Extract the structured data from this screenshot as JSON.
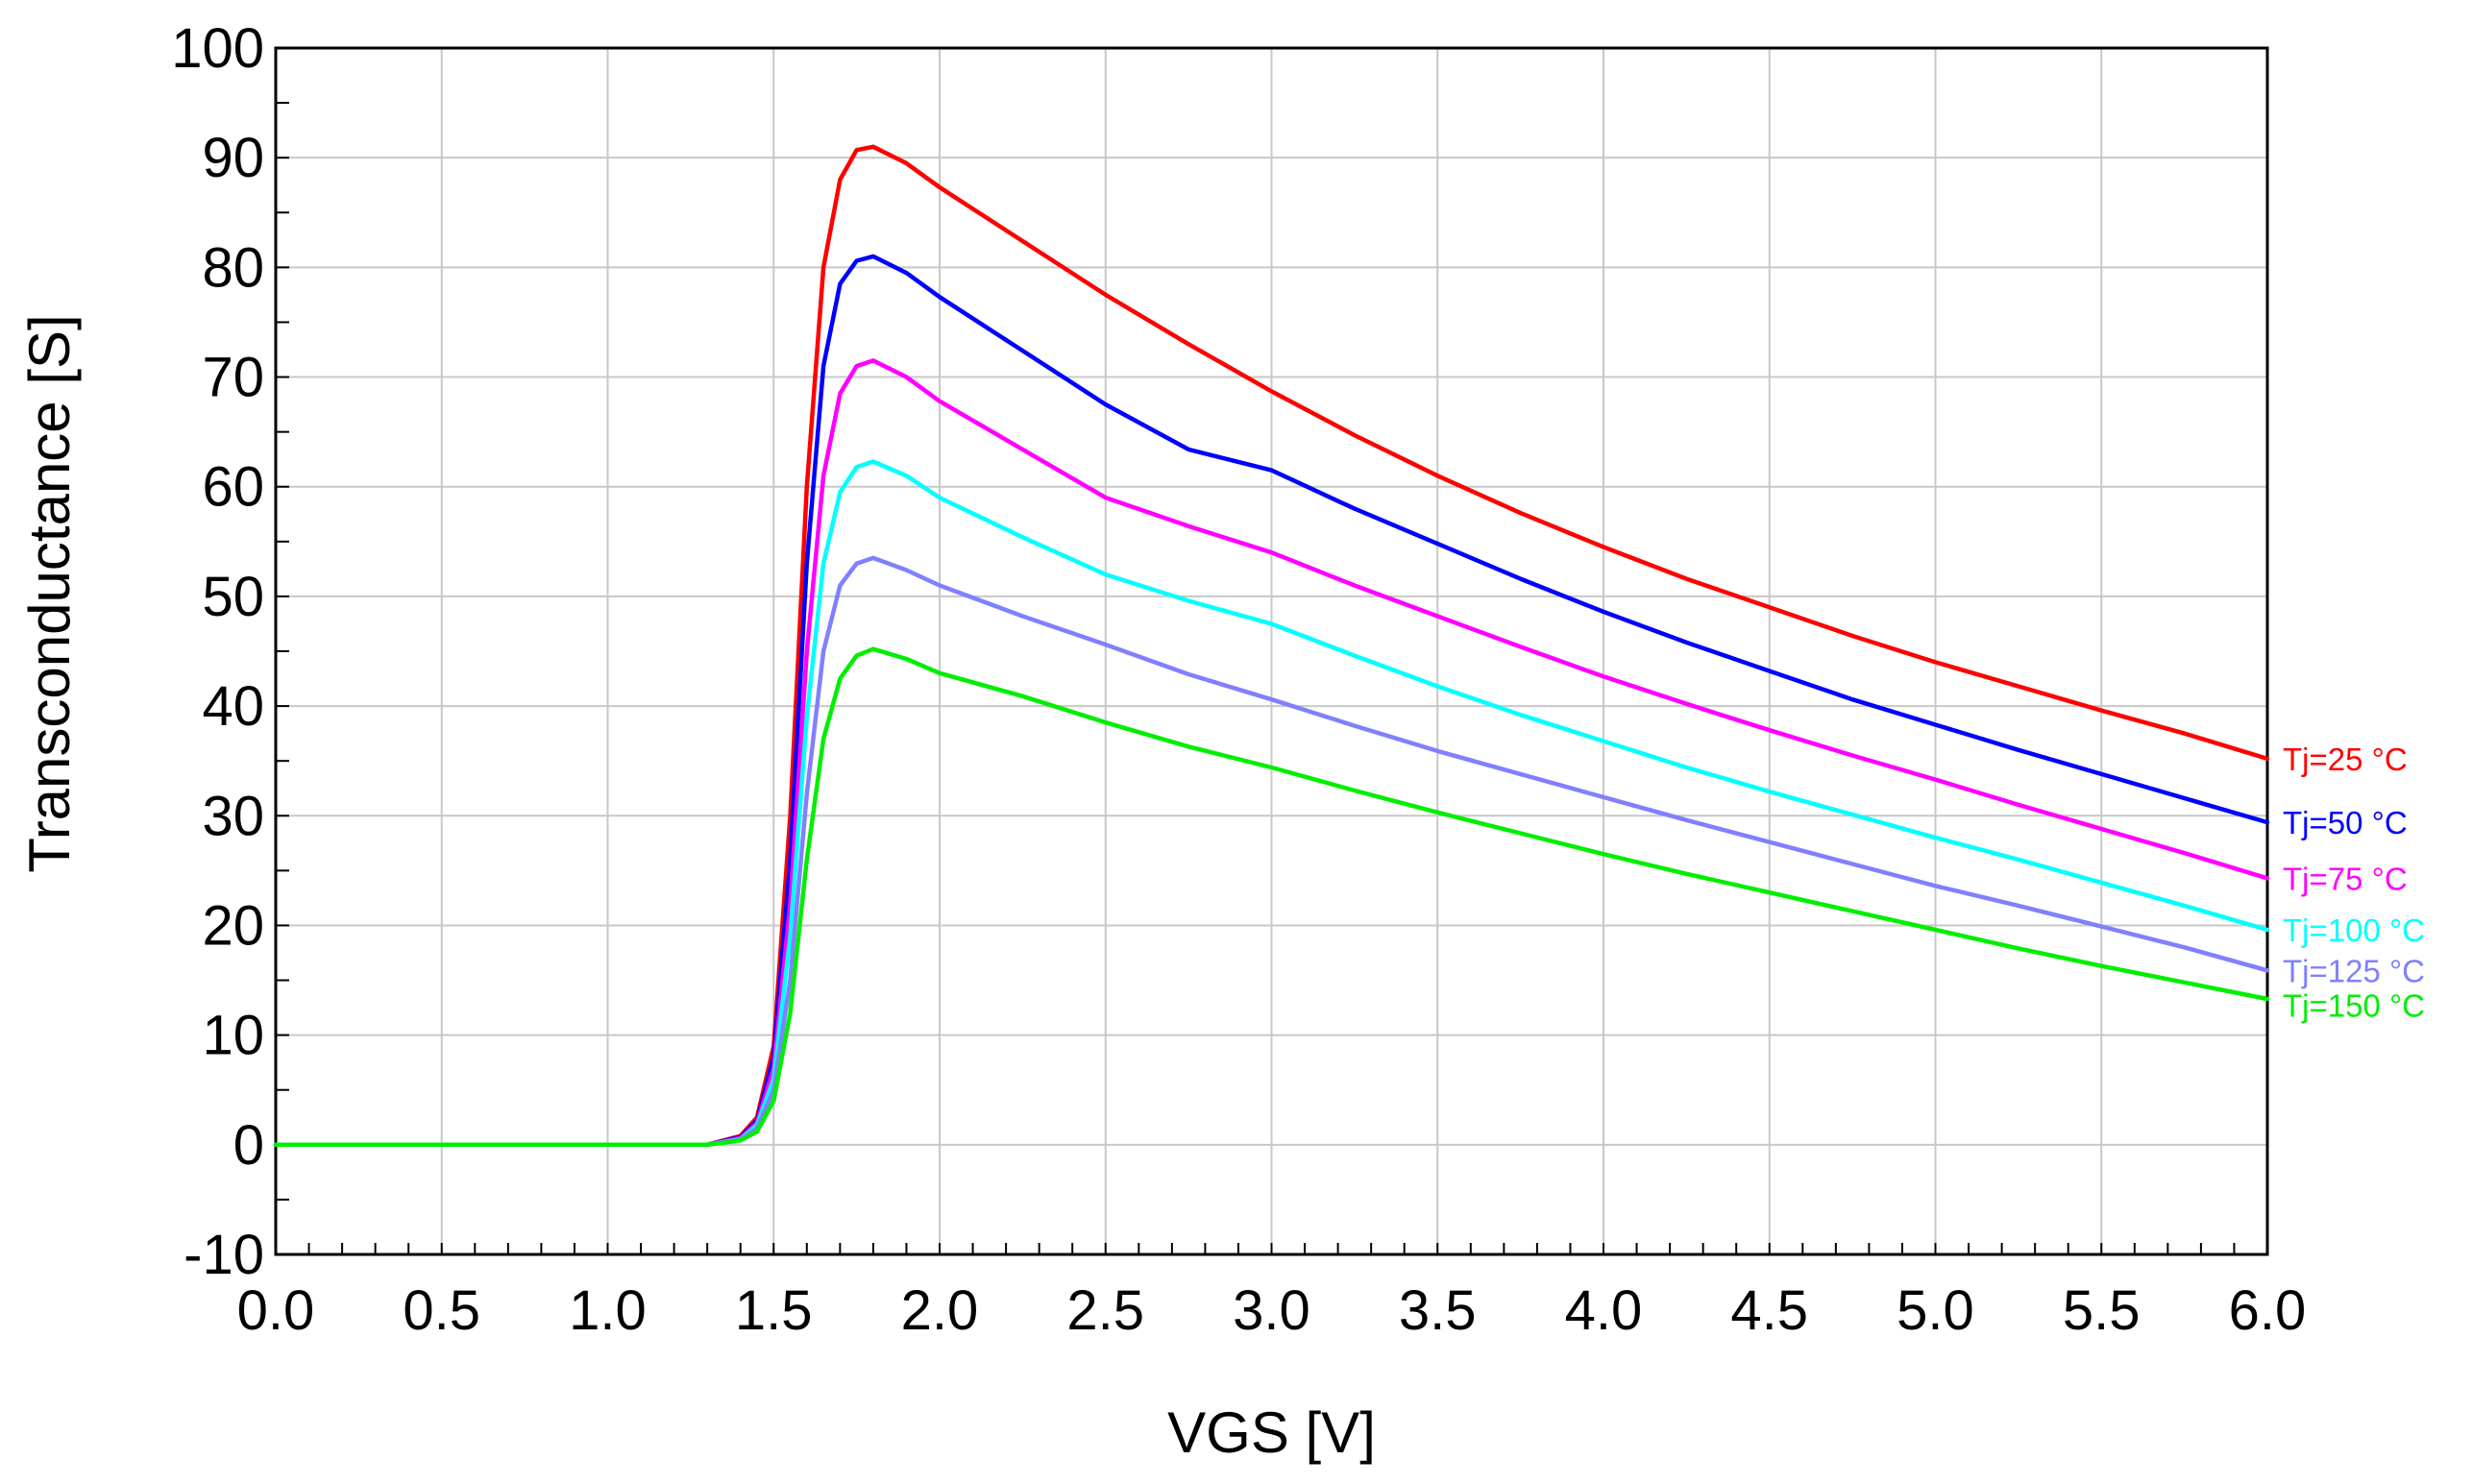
{
  "chart_data": {
    "type": "line",
    "xlabel": "VGS [V]",
    "ylabel": "Transconductance [S]",
    "xlim": [
      0.0,
      6.0
    ],
    "ylim": [
      -10,
      100
    ],
    "x_ticks": [
      "0.0",
      "0.5",
      "1.0",
      "1.5",
      "2.0",
      "2.5",
      "3.0",
      "3.5",
      "4.0",
      "4.5",
      "5.0",
      "5.5",
      "6.0"
    ],
    "y_ticks": [
      "-10",
      "0",
      "10",
      "20",
      "30",
      "40",
      "50",
      "60",
      "70",
      "80",
      "90",
      "100"
    ],
    "grid": true,
    "legend": "inline labels at right end of each curve",
    "series": [
      {
        "name": "Tj=25 °C",
        "color": "#ff0000",
        "points": [
          [
            0.0,
            0
          ],
          [
            1.3,
            0
          ],
          [
            1.4,
            0.8
          ],
          [
            1.45,
            2.5
          ],
          [
            1.5,
            9
          ],
          [
            1.55,
            30
          ],
          [
            1.6,
            60
          ],
          [
            1.65,
            80
          ],
          [
            1.7,
            88
          ],
          [
            1.75,
            90.7
          ],
          [
            1.8,
            91
          ],
          [
            1.9,
            89.5
          ],
          [
            2.0,
            87.3
          ],
          [
            2.25,
            82.4
          ],
          [
            2.5,
            77.5
          ],
          [
            2.75,
            73
          ],
          [
            3.0,
            68.7
          ],
          [
            3.25,
            64.7
          ],
          [
            3.5,
            61
          ],
          [
            3.75,
            57.6
          ],
          [
            4.0,
            54.5
          ],
          [
            4.25,
            51.6
          ],
          [
            4.5,
            49
          ],
          [
            4.75,
            46.4
          ],
          [
            5.0,
            44
          ],
          [
            5.25,
            41.8
          ],
          [
            5.5,
            39.6
          ],
          [
            5.75,
            37.5
          ],
          [
            6.0,
            35.2
          ]
        ]
      },
      {
        "name": "Tj=50 °C",
        "color": "#0000ff",
        "points": [
          [
            0.0,
            0
          ],
          [
            1.3,
            0
          ],
          [
            1.4,
            0.7
          ],
          [
            1.45,
            2.2
          ],
          [
            1.5,
            8
          ],
          [
            1.55,
            26
          ],
          [
            1.6,
            53
          ],
          [
            1.65,
            71
          ],
          [
            1.7,
            78.5
          ],
          [
            1.75,
            80.6
          ],
          [
            1.8,
            81
          ],
          [
            1.9,
            79.5
          ],
          [
            2.0,
            77.3
          ],
          [
            2.25,
            72.4
          ],
          [
            2.5,
            67.5
          ],
          [
            2.75,
            63.4
          ],
          [
            3.0,
            61.5
          ],
          [
            3.25,
            58
          ],
          [
            3.5,
            54.8
          ],
          [
            3.75,
            51.6
          ],
          [
            4.0,
            48.6
          ],
          [
            4.25,
            45.8
          ],
          [
            4.5,
            43.2
          ],
          [
            4.75,
            40.6
          ],
          [
            5.0,
            38.3
          ],
          [
            5.25,
            36
          ],
          [
            5.5,
            33.8
          ],
          [
            5.75,
            31.6
          ],
          [
            6.0,
            29.4
          ]
        ]
      },
      {
        "name": "Tj=75 °C",
        "color": "#ff00ff",
        "points": [
          [
            0.0,
            0
          ],
          [
            1.3,
            0
          ],
          [
            1.4,
            0.6
          ],
          [
            1.45,
            2
          ],
          [
            1.5,
            7
          ],
          [
            1.55,
            22
          ],
          [
            1.6,
            45
          ],
          [
            1.65,
            61
          ],
          [
            1.7,
            68.5
          ],
          [
            1.75,
            71
          ],
          [
            1.8,
            71.5
          ],
          [
            1.9,
            70
          ],
          [
            2.0,
            67.8
          ],
          [
            2.25,
            63.4
          ],
          [
            2.5,
            59
          ],
          [
            2.75,
            56.4
          ],
          [
            3.0,
            54
          ],
          [
            3.25,
            51
          ],
          [
            3.5,
            48.2
          ],
          [
            3.75,
            45.4
          ],
          [
            4.0,
            42.7
          ],
          [
            4.25,
            40.2
          ],
          [
            4.5,
            37.8
          ],
          [
            4.75,
            35.5
          ],
          [
            5.0,
            33.3
          ],
          [
            5.25,
            31
          ],
          [
            5.5,
            28.8
          ],
          [
            5.75,
            26.6
          ],
          [
            6.0,
            24.3
          ]
        ]
      },
      {
        "name": "Tj=100 °C",
        "color": "#00ffff",
        "points": [
          [
            0.0,
            0
          ],
          [
            1.3,
            0
          ],
          [
            1.4,
            0.5
          ],
          [
            1.45,
            1.8
          ],
          [
            1.5,
            6
          ],
          [
            1.55,
            19
          ],
          [
            1.6,
            39
          ],
          [
            1.65,
            53
          ],
          [
            1.7,
            59.5
          ],
          [
            1.75,
            61.8
          ],
          [
            1.8,
            62.3
          ],
          [
            1.9,
            61
          ],
          [
            2.0,
            59
          ],
          [
            2.25,
            55.4
          ],
          [
            2.5,
            52
          ],
          [
            2.75,
            49.6
          ],
          [
            3.0,
            47.5
          ],
          [
            3.25,
            44.6
          ],
          [
            3.5,
            41.8
          ],
          [
            3.75,
            39.2
          ],
          [
            4.0,
            36.8
          ],
          [
            4.25,
            34.4
          ],
          [
            4.5,
            32.2
          ],
          [
            4.75,
            30.1
          ],
          [
            5.0,
            28
          ],
          [
            5.25,
            26
          ],
          [
            5.5,
            23.9
          ],
          [
            5.75,
            21.8
          ],
          [
            6.0,
            19.6
          ]
        ]
      },
      {
        "name": "Tj=125 °C",
        "color": "#8080ff",
        "points": [
          [
            0.0,
            0
          ],
          [
            1.3,
            0
          ],
          [
            1.4,
            0.45
          ],
          [
            1.45,
            1.5
          ],
          [
            1.5,
            5
          ],
          [
            1.55,
            15
          ],
          [
            1.6,
            32
          ],
          [
            1.65,
            45
          ],
          [
            1.7,
            51
          ],
          [
            1.75,
            53
          ],
          [
            1.8,
            53.5
          ],
          [
            1.9,
            52.4
          ],
          [
            2.0,
            51
          ],
          [
            2.25,
            48.2
          ],
          [
            2.5,
            45.6
          ],
          [
            2.75,
            42.9
          ],
          [
            3.0,
            40.6
          ],
          [
            3.25,
            38.2
          ],
          [
            3.5,
            35.9
          ],
          [
            3.75,
            33.8
          ],
          [
            4.0,
            31.7
          ],
          [
            4.25,
            29.6
          ],
          [
            4.5,
            27.6
          ],
          [
            4.75,
            25.6
          ],
          [
            5.0,
            23.6
          ],
          [
            5.25,
            21.8
          ],
          [
            5.5,
            19.9
          ],
          [
            5.75,
            18
          ],
          [
            6.0,
            15.9
          ]
        ]
      },
      {
        "name": "Tj=150 °C",
        "color": "#00ee00",
        "points": [
          [
            0.0,
            0
          ],
          [
            1.3,
            0
          ],
          [
            1.4,
            0.4
          ],
          [
            1.45,
            1.2
          ],
          [
            1.5,
            4
          ],
          [
            1.55,
            12
          ],
          [
            1.6,
            26
          ],
          [
            1.65,
            37
          ],
          [
            1.7,
            42.5
          ],
          [
            1.75,
            44.6
          ],
          [
            1.8,
            45.2
          ],
          [
            1.9,
            44.3
          ],
          [
            2.0,
            43
          ],
          [
            2.25,
            40.9
          ],
          [
            2.5,
            38.5
          ],
          [
            2.75,
            36.3
          ],
          [
            3.0,
            34.4
          ],
          [
            3.25,
            32.3
          ],
          [
            3.5,
            30.3
          ],
          [
            3.75,
            28.4
          ],
          [
            4.0,
            26.5
          ],
          [
            4.25,
            24.7
          ],
          [
            4.5,
            23
          ],
          [
            4.75,
            21.3
          ],
          [
            5.0,
            19.6
          ],
          [
            5.25,
            17.9
          ],
          [
            5.5,
            16.3
          ],
          [
            5.75,
            14.8
          ],
          [
            6.0,
            13.3
          ]
        ]
      }
    ]
  }
}
